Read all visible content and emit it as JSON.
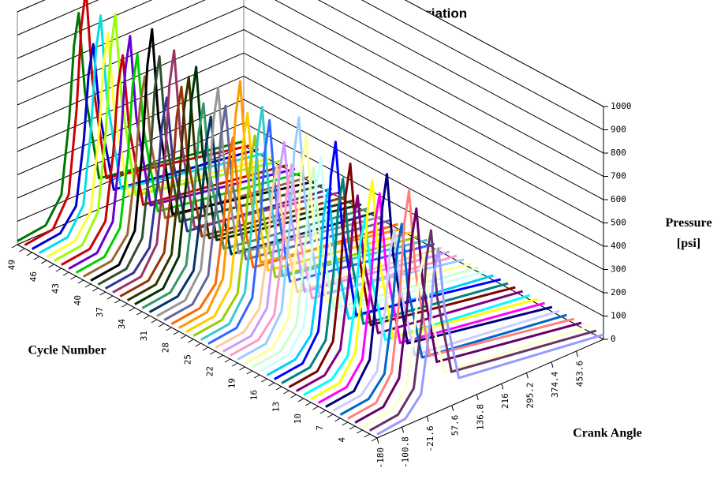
{
  "chart_data": {
    "type": "waterfall3d",
    "title": "Cycle to Cycle Pressure Variation",
    "x_label": "Crank Angle",
    "y_label": "Pressure [psi]",
    "category_label": "Cycle Number",
    "x": [
      -180,
      -90,
      -40,
      -15,
      0,
      15,
      35,
      80,
      540
    ],
    "xlim": [
      -180,
      540
    ],
    "xticks": [
      -180,
      -100.8,
      -21.6,
      57.6,
      136.8,
      216,
      295.2,
      374.4,
      453.6
    ],
    "ylim": [
      0,
      1000
    ],
    "yticks": [
      0,
      100,
      200,
      300,
      400,
      500,
      600,
      700,
      800,
      900,
      1000
    ],
    "grid": true,
    "categories": [
      null,
      null,
      null,
      "4",
      null,
      null,
      "7",
      null,
      null,
      "10",
      null,
      null,
      "13",
      null,
      null,
      "16",
      null,
      null,
      "19",
      null,
      null,
      "22",
      null,
      null,
      "25",
      null,
      null,
      "28",
      null,
      null,
      "31",
      null,
      null,
      "34",
      null,
      null,
      "37",
      null,
      null,
      "40",
      null,
      null,
      "43",
      null,
      null,
      "46",
      null,
      null,
      "49",
      null
    ],
    "series": [
      {
        "color": "#9999ff",
        "values": [
          15,
          30,
          105,
          350,
          595,
          700,
          420,
          105,
          20
        ]
      },
      {
        "color": "#663366",
        "values": [
          15,
          30,
          114,
          380,
          646,
          760,
          456,
          114,
          20
        ]
      },
      {
        "color": "#ffffcc",
        "values": [
          15,
          30,
          96,
          320,
          544,
          640,
          384,
          96,
          20
        ]
      },
      {
        "color": "#660066",
        "values": [
          15,
          30,
          123,
          410,
          697,
          820,
          492,
          123,
          20
        ]
      },
      {
        "color": "#ff8080",
        "values": [
          15,
          30,
          132,
          440,
          748,
          880,
          528,
          132,
          20
        ]
      },
      {
        "color": "#0066cc",
        "values": [
          15,
          30,
          108,
          360,
          612,
          720,
          432,
          108,
          20
        ]
      },
      {
        "color": "#ccccff",
        "values": [
          15,
          30,
          102,
          340,
          578,
          680,
          408,
          102,
          20
        ]
      },
      {
        "color": "#000080",
        "values": [
          15,
          30,
          135,
          450,
          765,
          900,
          540,
          135,
          20
        ]
      },
      {
        "color": "#ff00ff",
        "values": [
          15,
          30,
          120,
          400,
          680,
          800,
          480,
          120,
          20
        ]
      },
      {
        "color": "#ffff00",
        "values": [
          15,
          30,
          126,
          420,
          714,
          840,
          504,
          126,
          20
        ]
      },
      {
        "color": "#00ffff",
        "values": [
          15,
          30,
          99,
          330,
          561,
          660,
          396,
          99,
          20
        ]
      },
      {
        "color": "#800080",
        "values": [
          15,
          30,
          111,
          370,
          629,
          740,
          444,
          111,
          20
        ]
      },
      {
        "color": "#800000",
        "values": [
          15,
          30,
          129,
          430,
          731,
          860,
          516,
          129,
          20
        ]
      },
      {
        "color": "#008080",
        "values": [
          15,
          30,
          117,
          390,
          663,
          780,
          468,
          117,
          20
        ]
      },
      {
        "color": "#0000ff",
        "values": [
          15,
          30,
          138,
          460,
          782,
          920,
          552,
          138,
          20
        ]
      },
      {
        "color": "#00ccff",
        "values": [
          15,
          30,
          105,
          350,
          595,
          700,
          420,
          105,
          20
        ]
      },
      {
        "color": "#ccffff",
        "values": [
          15,
          30,
          123,
          410,
          697,
          820,
          492,
          123,
          20
        ]
      },
      {
        "color": "#ccffcc",
        "values": [
          15,
          30,
          114,
          380,
          646,
          760,
          456,
          114,
          20
        ]
      },
      {
        "color": "#ffff99",
        "values": [
          15,
          30,
          132,
          440,
          748,
          880,
          528,
          132,
          20
        ]
      },
      {
        "color": "#99ccff",
        "values": [
          15,
          30,
          141,
          470,
          799,
          940,
          564,
          141,
          20
        ]
      },
      {
        "color": "#ff99cc",
        "values": [
          15,
          30,
          108,
          360,
          612,
          720,
          432,
          108,
          20
        ]
      },
      {
        "color": "#cc99ff",
        "values": [
          15,
          30,
          120,
          400,
          680,
          800,
          480,
          120,
          20
        ]
      },
      {
        "color": "#ffcc99",
        "values": [
          15,
          30,
          102,
          340,
          578,
          680,
          408,
          102,
          20
        ]
      },
      {
        "color": "#3366ff",
        "values": [
          15,
          30,
          129,
          430,
          731,
          860,
          516,
          129,
          20
        ]
      },
      {
        "color": "#33cccc",
        "values": [
          15,
          30,
          135,
          450,
          765,
          900,
          540,
          135,
          20
        ]
      },
      {
        "color": "#99cc00",
        "values": [
          15,
          30,
          114,
          380,
          646,
          760,
          456,
          114,
          20
        ]
      },
      {
        "color": "#ffcc00",
        "values": [
          15,
          30,
          126,
          420,
          714,
          840,
          504,
          126,
          20
        ]
      },
      {
        "color": "#ff9900",
        "values": [
          15,
          30,
          144,
          480,
          816,
          960,
          576,
          144,
          20
        ]
      },
      {
        "color": "#ff6600",
        "values": [
          15,
          30,
          105,
          350,
          595,
          700,
          420,
          105,
          20
        ]
      },
      {
        "color": "#666699",
        "values": [
          15,
          30,
          123,
          410,
          697,
          820,
          492,
          123,
          20
        ]
      },
      {
        "color": "#969696",
        "values": [
          15,
          30,
          132,
          440,
          748,
          880,
          528,
          132,
          20
        ]
      },
      {
        "color": "#003366",
        "values": [
          15,
          30,
          111,
          370,
          629,
          740,
          444,
          111,
          20
        ]
      },
      {
        "color": "#339966",
        "values": [
          15,
          30,
          117,
          390,
          663,
          780,
          468,
          117,
          20
        ]
      },
      {
        "color": "#003300",
        "values": [
          15,
          30,
          138,
          460,
          782,
          920,
          552,
          138,
          20
        ]
      },
      {
        "color": "#333300",
        "values": [
          15,
          30,
          129,
          430,
          731,
          860,
          516,
          129,
          20
        ]
      },
      {
        "color": "#993300",
        "values": [
          15,
          30,
          120,
          400,
          680,
          800,
          480,
          120,
          20
        ]
      },
      {
        "color": "#993366",
        "values": [
          15,
          30,
          141,
          470,
          799,
          940,
          564,
          141,
          20
        ]
      },
      {
        "color": "#333399",
        "values": [
          15,
          30,
          108,
          360,
          612,
          720,
          432,
          108,
          20
        ]
      },
      {
        "color": "#2f4f2f",
        "values": [
          15,
          30,
          132,
          440,
          748,
          880,
          528,
          132,
          20
        ]
      },
      {
        "color": "#000000",
        "values": [
          15,
          30,
          147,
          490,
          833,
          980,
          588,
          147,
          20
        ]
      },
      {
        "color": "#996633",
        "values": [
          15,
          30,
          114,
          380,
          646,
          760,
          456,
          114,
          20
        ]
      },
      {
        "color": "#00cc00",
        "values": [
          15,
          30,
          126,
          420,
          714,
          840,
          504,
          126,
          20
        ]
      },
      {
        "color": "#6600cc",
        "values": [
          15,
          30,
          135,
          450,
          765,
          900,
          540,
          135,
          20
        ]
      },
      {
        "color": "#cc0000",
        "values": [
          15,
          30,
          120,
          400,
          680,
          800,
          480,
          120,
          20
        ]
      },
      {
        "color": "#99ff00",
        "values": [
          15,
          30,
          144,
          480,
          816,
          960,
          576,
          144,
          20
        ]
      },
      {
        "color": "#ffff33",
        "values": [
          15,
          30,
          129,
          430,
          731,
          860,
          516,
          129,
          20
        ]
      },
      {
        "color": "#00e0e0",
        "values": [
          15,
          30,
          138,
          460,
          782,
          920,
          552,
          138,
          20
        ]
      },
      {
        "color": "#0000cc",
        "values": [
          15,
          30,
          117,
          390,
          663,
          780,
          468,
          117,
          20
        ]
      },
      {
        "color": "#cc0000",
        "values": [
          15,
          30,
          150,
          500,
          850,
          1000,
          600,
          150,
          20
        ]
      },
      {
        "color": "#007700",
        "values": [
          15,
          30,
          132,
          440,
          748,
          880,
          528,
          132,
          20
        ]
      }
    ]
  }
}
